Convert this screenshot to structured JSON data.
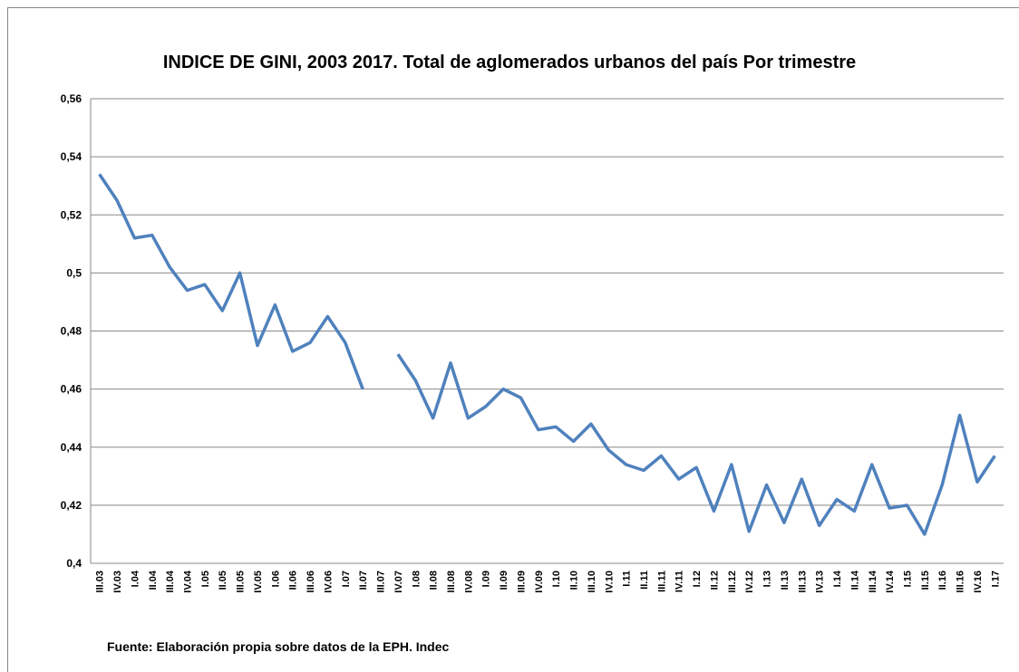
{
  "chart_data": {
    "type": "line",
    "title": "INDICE DE GINI, 2003 2017. Total de aglomerados urbanos del país Por trimestre",
    "source": "Fuente: Elaboración propia sobre datos de la EPH. Indec",
    "categories": [
      "III.03",
      "IV.03",
      "I.04",
      "II.04",
      "III.04",
      "IV.04",
      "I.05",
      "II.05",
      "III.05",
      "IV.05",
      "I.06",
      "II.06",
      "III.06",
      "IV.06",
      "I.07",
      "II.07",
      "III.07",
      "IV.07",
      "I.08",
      "II.08",
      "III.08",
      "IV.08",
      "I.09",
      "II.09",
      "III.09",
      "IV.09",
      "I.10",
      "II.10",
      "III.10",
      "IV.10",
      "I.11",
      "II.11",
      "III.11",
      "IV.11",
      "I.12",
      "II.12",
      "III.12",
      "IV.12",
      "I.13",
      "II.13",
      "III.13",
      "IV.13",
      "I.14",
      "II.14",
      "III.14",
      "IV.14",
      "I.15",
      "II.15",
      "II.16",
      "III.16",
      "IV.16",
      "I.17"
    ],
    "values": [
      0.534,
      0.525,
      0.512,
      0.513,
      0.502,
      0.494,
      0.496,
      0.487,
      0.5,
      0.475,
      0.489,
      0.473,
      0.476,
      0.485,
      0.476,
      0.46,
      null,
      0.472,
      0.463,
      0.45,
      0.469,
      0.45,
      0.454,
      0.46,
      0.457,
      0.446,
      0.447,
      0.442,
      0.448,
      0.439,
      0.434,
      0.432,
      0.437,
      0.429,
      0.433,
      0.418,
      0.434,
      0.411,
      0.427,
      0.414,
      0.429,
      0.413,
      0.422,
      0.418,
      0.434,
      0.419,
      0.42,
      0.41,
      0.427,
      0.451,
      0.428,
      0.437
    ],
    "color": "#4f81bd",
    "ylim": [
      0.4,
      0.56
    ],
    "yticks": [
      {
        "value": 0.4,
        "label": "0,4"
      },
      {
        "value": 0.42,
        "label": "0,42"
      },
      {
        "value": 0.44,
        "label": "0,44"
      },
      {
        "value": 0.46,
        "label": "0,46"
      },
      {
        "value": 0.48,
        "label": "0,48"
      },
      {
        "value": 0.5,
        "label": "0,5"
      },
      {
        "value": 0.52,
        "label": "0,52"
      },
      {
        "value": 0.54,
        "label": "0,54"
      },
      {
        "value": 0.56,
        "label": "0,56"
      }
    ],
    "grid": true
  }
}
